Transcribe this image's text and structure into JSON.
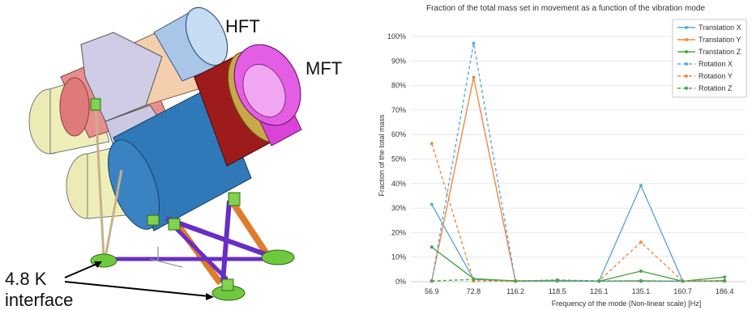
{
  "figure": {
    "labels": {
      "hft": "HFT",
      "mft": "MFT",
      "interface_line1": "4.8 K",
      "interface_line2": "interface"
    }
  },
  "chart_data": {
    "type": "line",
    "title": "Fraction of the total mass set in movement as a function of the vibration mode",
    "xlabel": "Frequency of the mode (Non-linear scale) [Hz]",
    "ylabel": "Fraction of the total mass",
    "categories": [
      "56.9",
      "72.8",
      "116.2",
      "118.5",
      "126.1",
      "135.1",
      "160.7",
      "186.4"
    ],
    "y_ticks": [
      "0%",
      "10%",
      "20%",
      "30%",
      "40%",
      "50%",
      "60%",
      "70%",
      "80%",
      "90%",
      "100%"
    ],
    "ylim": [
      0,
      100
    ],
    "grid": true,
    "legend_position": "top-right",
    "series": [
      {
        "name": "Translation X",
        "color": "#5aa9de",
        "dash": "solid",
        "values": [
          31.5,
          1.0,
          0.3,
          0.2,
          0.3,
          39.2,
          0.2,
          0.2
        ]
      },
      {
        "name": "Translation Y",
        "color": "#ef8a43",
        "dash": "solid",
        "values": [
          0.3,
          83.3,
          0.2,
          0.3,
          0.2,
          0.4,
          0.2,
          0.3
        ]
      },
      {
        "name": "Translation Z",
        "color": "#4aa54a",
        "dash": "solid",
        "values": [
          14.1,
          1.2,
          0.3,
          0.5,
          0.2,
          4.3,
          0.2,
          1.9
        ]
      },
      {
        "name": "Rotation X",
        "color": "#5aa9de",
        "dash": "dashed",
        "values": [
          0.2,
          97.2,
          0.2,
          0.3,
          0.2,
          0.2,
          0.2,
          0.3
        ]
      },
      {
        "name": "Rotation Y",
        "color": "#ef8a43",
        "dash": "dashed",
        "values": [
          56.3,
          0.3,
          0.2,
          0.7,
          0.3,
          16.1,
          0.2,
          0.4
        ]
      },
      {
        "name": "Rotation Z",
        "color": "#4aa54a",
        "dash": "dashed",
        "values": [
          0.3,
          0.9,
          0.3,
          0.6,
          0.3,
          0.3,
          0.2,
          0.4
        ]
      }
    ]
  }
}
